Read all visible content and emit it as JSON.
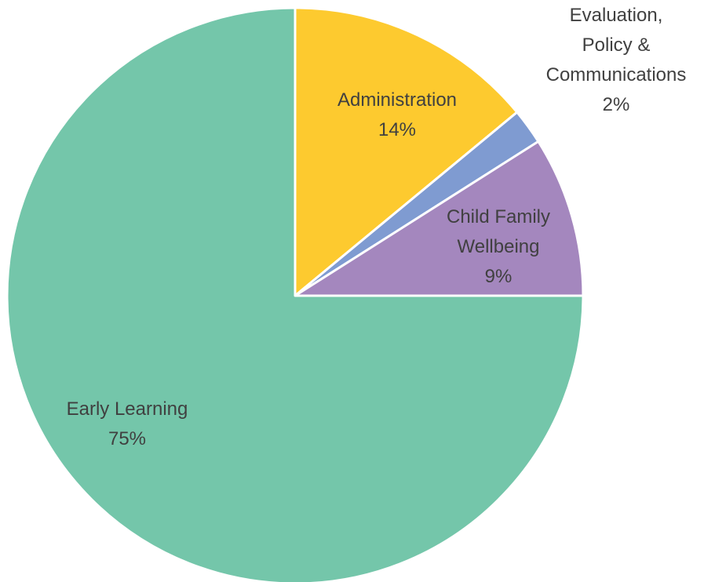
{
  "chart_data": {
    "type": "pie",
    "categories": [
      "Administration",
      "Evaluation, Policy & Communications",
      "Child Family Wellbeing",
      "Early Learning"
    ],
    "values": [
      14,
      2,
      9,
      75
    ],
    "value_labels": [
      "14%",
      "2%",
      "9%",
      "75%"
    ],
    "colors": [
      "#fdca2f",
      "#7f9bd1",
      "#a487be",
      "#74c6aa"
    ]
  }
}
